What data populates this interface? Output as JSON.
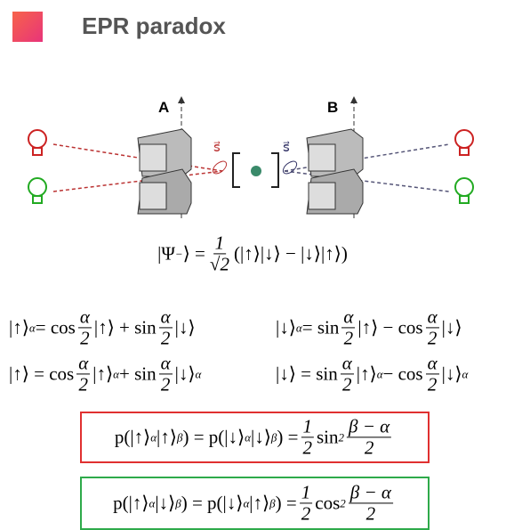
{
  "header": {
    "title": "EPR paradox"
  },
  "diagram": {
    "labels": [
      "A",
      "B"
    ],
    "spin_labels": [
      "s⃗",
      "s⃗"
    ]
  },
  "equations": [
    {
      "tokens": [
        "|Ψ",
        {
          "sup": "−"
        },
        "⟩ = ",
        {
          "f": [
            "1",
            "√2"
          ]
        },
        "(|↑⟩|↓⟩ − |↓⟩|↑⟩)"
      ]
    },
    {
      "tokens": [
        "|↑⟩",
        {
          "sub": "α"
        },
        " = cos",
        {
          "f": [
            "α",
            "2"
          ]
        },
        "|↑⟩ + sin",
        {
          "f": [
            "α",
            "2"
          ]
        },
        "|↓⟩"
      ]
    },
    {
      "tokens": [
        "|↓⟩",
        {
          "sub": "α"
        },
        " = sin",
        {
          "f": [
            "α",
            "2"
          ]
        },
        "|↑⟩ − cos",
        {
          "f": [
            "α",
            "2"
          ]
        },
        "|↓⟩"
      ]
    },
    {
      "tokens": [
        "|↑⟩ = cos",
        {
          "f": [
            "α",
            "2"
          ]
        },
        "|↑⟩",
        {
          "sub": "α"
        },
        " + sin",
        {
          "f": [
            "α",
            "2"
          ]
        },
        "|↓⟩",
        {
          "sub": "α"
        }
      ]
    },
    {
      "tokens": [
        "|↓⟩ = sin",
        {
          "f": [
            "α",
            "2"
          ]
        },
        "|↑⟩",
        {
          "sub": "α"
        },
        " − cos",
        {
          "f": [
            "α",
            "2"
          ]
        },
        "|↓⟩",
        {
          "sub": "α"
        }
      ]
    },
    {
      "frame": "#e03030",
      "tokens": [
        "p(|↑⟩",
        {
          "sub": "α"
        },
        "|↑⟩",
        {
          "sub": "β"
        },
        ") = p(|↓⟩",
        {
          "sub": "α"
        },
        "|↓⟩",
        {
          "sub": "β"
        },
        ") = ",
        {
          "f": [
            "1",
            "2"
          ]
        },
        "sin",
        {
          "sup": "2"
        },
        {
          "f": [
            "β − α",
            "2"
          ]
        }
      ]
    },
    {
      "frame": "#2eaa4a",
      "tokens": [
        "p(|↑⟩",
        {
          "sub": "α"
        },
        "|↓⟩",
        {
          "sub": "β"
        },
        ") = p(|↓⟩",
        {
          "sub": "α"
        },
        "|↑⟩",
        {
          "sub": "β"
        },
        ") = ",
        {
          "f": [
            "1",
            "2"
          ]
        },
        "cos",
        {
          "sup": "2"
        },
        {
          "f": [
            "β − α",
            "2"
          ]
        }
      ]
    }
  ]
}
